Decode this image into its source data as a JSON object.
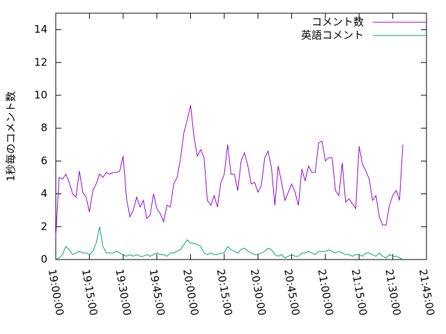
{
  "chart_data": {
    "type": "line",
    "ylabel": "1秒毎のコメント数",
    "x": [
      "19:00:00",
      "19:01:30",
      "19:03:00",
      "19:04:30",
      "19:06:00",
      "19:07:30",
      "19:09:00",
      "19:10:30",
      "19:12:00",
      "19:13:30",
      "19:15:00",
      "19:16:30",
      "19:18:00",
      "19:19:30",
      "19:21:00",
      "19:22:30",
      "19:24:00",
      "19:25:30",
      "19:27:00",
      "19:28:30",
      "19:30:00",
      "19:31:30",
      "19:33:00",
      "19:34:30",
      "19:36:00",
      "19:37:30",
      "19:39:00",
      "19:40:30",
      "19:42:00",
      "19:43:30",
      "19:45:00",
      "19:46:30",
      "19:48:00",
      "19:49:30",
      "19:51:00",
      "19:52:30",
      "19:54:00",
      "19:55:30",
      "19:57:00",
      "19:58:30",
      "20:00:00",
      "20:01:30",
      "20:03:00",
      "20:04:30",
      "20:06:00",
      "20:07:30",
      "20:09:00",
      "20:10:30",
      "20:12:00",
      "20:13:30",
      "20:15:00",
      "20:16:30",
      "20:18:00",
      "20:19:30",
      "20:21:00",
      "20:22:30",
      "20:24:00",
      "20:25:30",
      "20:27:00",
      "20:28:30",
      "20:30:00",
      "20:31:30",
      "20:33:00",
      "20:34:30",
      "20:36:00",
      "20:37:30",
      "20:39:00",
      "20:40:30",
      "20:42:00",
      "20:43:30",
      "20:45:00",
      "20:46:30",
      "20:48:00",
      "20:49:30",
      "20:51:00",
      "20:52:30",
      "20:54:00",
      "20:55:30",
      "20:57:00",
      "20:58:30",
      "21:00:00",
      "21:01:30",
      "21:03:00",
      "21:04:30",
      "21:06:00",
      "21:07:30",
      "21:09:00",
      "21:10:30",
      "21:12:00",
      "21:13:30",
      "21:15:00",
      "21:16:30",
      "21:18:00",
      "21:19:30",
      "21:21:00",
      "21:22:30",
      "21:24:00",
      "21:25:30",
      "21:27:00",
      "21:28:30",
      "21:30:00",
      "21:31:30",
      "21:33:00",
      "21:34:30"
    ],
    "series": [
      {
        "name": "コメント数",
        "color": "#9400d3",
        "values": [
          1.4,
          5.0,
          4.9,
          5.2,
          4.7,
          4.0,
          3.8,
          5.4,
          4.1,
          3.8,
          2.9,
          4.2,
          4.6,
          5.2,
          5.0,
          5.3,
          5.2,
          5.3,
          5.3,
          5.4,
          6.3,
          3.7,
          2.6,
          3.0,
          3.8,
          3.2,
          3.6,
          2.5,
          2.7,
          4.0,
          3.1,
          2.8,
          2.3,
          3.3,
          3.2,
          4.6,
          5.0,
          6.1,
          7.7,
          8.5,
          9.4,
          7.5,
          6.3,
          6.7,
          6.2,
          3.6,
          3.3,
          3.9,
          3.2,
          4.7,
          5.2,
          7.0,
          5.2,
          5.2,
          4.2,
          6.0,
          6.5,
          5.7,
          4.6,
          4.7,
          4.1,
          4.5,
          6.2,
          6.6,
          5.6,
          3.3,
          5.7,
          4.7,
          3.6,
          4.1,
          4.6,
          4.1,
          3.3,
          5.5,
          4.8,
          5.7,
          5.3,
          5.3,
          7.1,
          7.2,
          6.0,
          6.2,
          6.2,
          4.2,
          3.9,
          5.9,
          3.5,
          3.7,
          3.4,
          3.1,
          6.9,
          5.8,
          5.4,
          4.9,
          3.6,
          3.9,
          2.6,
          2.1,
          2.1,
          3.3,
          3.9,
          4.2,
          3.6,
          7.0
        ]
      },
      {
        "name": "英語コメント",
        "color": "#009e73",
        "values": [
          0.0,
          0.1,
          0.3,
          0.8,
          0.6,
          0.3,
          0.4,
          0.5,
          0.4,
          0.4,
          0.3,
          0.5,
          1.0,
          2.0,
          0.8,
          0.4,
          0.4,
          0.4,
          0.5,
          0.4,
          0.3,
          0.2,
          0.3,
          0.2,
          0.3,
          0.2,
          0.2,
          0.3,
          0.2,
          0.3,
          0.4,
          0.3,
          0.3,
          0.2,
          0.4,
          0.4,
          0.5,
          0.6,
          0.9,
          1.2,
          1.0,
          1.0,
          0.9,
          0.8,
          0.4,
          0.3,
          0.4,
          0.3,
          0.3,
          0.4,
          0.4,
          0.8,
          0.6,
          0.5,
          0.4,
          0.6,
          0.7,
          0.5,
          0.4,
          0.3,
          0.3,
          0.4,
          0.5,
          0.7,
          0.6,
          0.3,
          0.2,
          0.3,
          0.1,
          0.2,
          0.3,
          0.2,
          0.2,
          0.4,
          0.4,
          0.5,
          0.4,
          0.3,
          0.5,
          0.5,
          0.5,
          0.6,
          0.5,
          0.4,
          0.5,
          0.4,
          0.3,
          0.3,
          0.2,
          0.3,
          0.3,
          0.2,
          0.4,
          0.4,
          0.3,
          0.2,
          0.4,
          0.2,
          0.1,
          0.3,
          0.2,
          0.2,
          0.1,
          0.0
        ]
      }
    ],
    "xlim": [
      "19:00:00",
      "21:45:00"
    ],
    "xticks": [
      "19:00:00",
      "19:15:00",
      "19:30:00",
      "19:45:00",
      "20:00:00",
      "20:15:00",
      "20:30:00",
      "20:45:00",
      "21:00:00",
      "21:15:00",
      "21:30:00",
      "21:45:00"
    ],
    "ylim": [
      0,
      15
    ],
    "yticks": [
      0,
      2,
      4,
      6,
      8,
      10,
      12,
      14
    ],
    "legend": "top-right"
  }
}
